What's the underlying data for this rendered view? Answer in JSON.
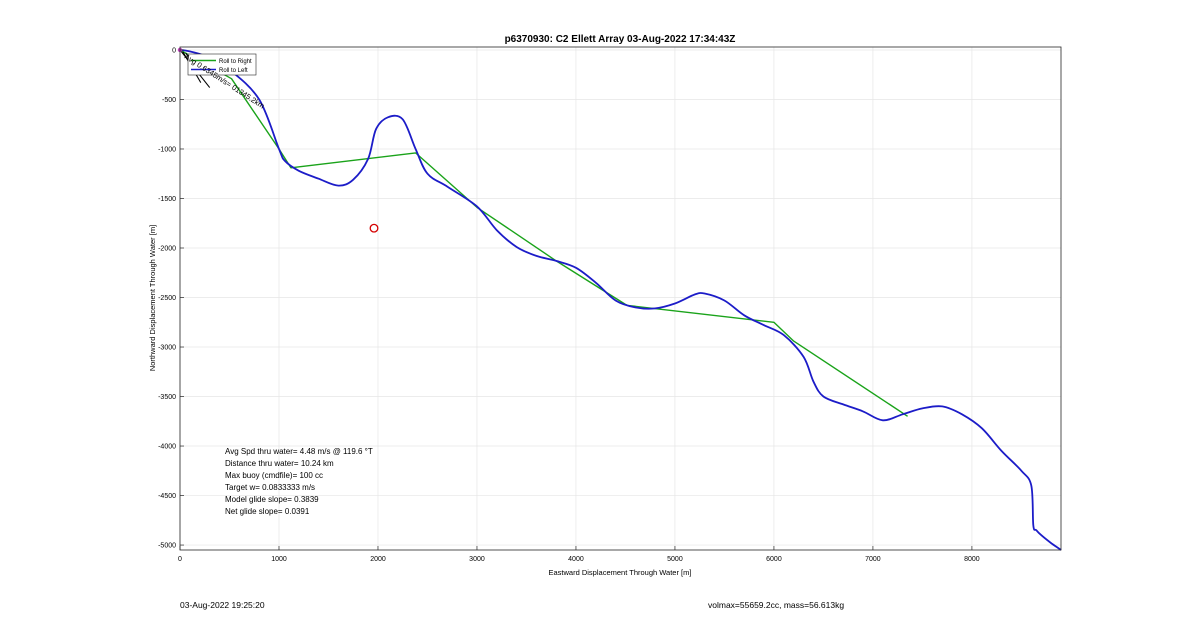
{
  "chart_data": {
    "type": "line",
    "title": "p6370930: C2 Ellett Array 03-Aug-2022 17:34:43Z",
    "xlabel": "Eastward Displacement Through Water [m]",
    "ylabel": "Northward Displacement Through Water [m]",
    "xlim": [
      0,
      8900
    ],
    "ylim": [
      -5050,
      30
    ],
    "xticks": [
      0,
      1000,
      2000,
      3000,
      4000,
      5000,
      6000,
      7000,
      8000
    ],
    "yticks": [
      0,
      -500,
      -1000,
      -1500,
      -2000,
      -2500,
      -3000,
      -3500,
      -4000,
      -4500,
      -5000
    ],
    "grid": true,
    "legend": {
      "placement": "top-left",
      "entries": [
        "Roll to Right",
        "Roll to Left"
      ]
    },
    "series": [
      {
        "name": "Roll to Right",
        "color": "#1aa31a",
        "x": [
          0,
          520,
          1000,
          1120,
          2380,
          3000,
          3800,
          4500,
          4520,
          6000,
          6200,
          7350
        ],
        "y": [
          0,
          -290,
          -1000,
          -1190,
          -1040,
          -1590,
          -2130,
          -2570,
          -2580,
          -2750,
          -2940,
          -3700
        ]
      },
      {
        "name": "Roll to Left",
        "color": "#1c1cc8",
        "x": [
          0,
          80,
          250,
          500,
          800,
          1000,
          1060,
          1200,
          1400,
          1600,
          1750,
          1900,
          1980,
          2100,
          2250,
          2380,
          2500,
          2700,
          3000,
          3200,
          3400,
          3600,
          3800,
          4000,
          4200,
          4400,
          4600,
          4800,
          5000,
          5200,
          5300,
          5500,
          5700,
          5900,
          6100,
          6300,
          6400,
          6500,
          6700,
          6900,
          7100,
          7300,
          7500,
          7700,
          7900,
          8100,
          8300,
          8500,
          8600,
          8620,
          8650,
          8700,
          8800,
          8900
        ],
        "y": [
          0,
          -10,
          -60,
          -200,
          -500,
          -1000,
          -1120,
          -1220,
          -1300,
          -1370,
          -1310,
          -1100,
          -800,
          -680,
          -700,
          -1000,
          -1250,
          -1380,
          -1580,
          -1820,
          -1990,
          -2080,
          -2130,
          -2200,
          -2350,
          -2530,
          -2600,
          -2610,
          -2560,
          -2470,
          -2460,
          -2530,
          -2680,
          -2780,
          -2880,
          -3100,
          -3350,
          -3500,
          -3580,
          -3650,
          -3740,
          -3680,
          -3620,
          -3600,
          -3680,
          -3820,
          -4050,
          -4250,
          -4400,
          -4800,
          -4850,
          -4900,
          -4980,
          -5050
        ]
      }
    ],
    "target_marker": {
      "x": 1960,
      "y": -1800,
      "color": "#d40000"
    },
    "annotations": {
      "track_label": "Avg 0.6345m/s= 01345.2km",
      "stats": [
        "Avg Spd thru water=  4.48 m/s @ 119.6 °T",
        "Distance thru water= 10.24 km",
        "Max buoy (cmdfile)= 100 cc",
        "Target w= 0.0833333 m/s",
        "Model glide slope= 0.3839",
        "Net glide slope= 0.0391"
      ]
    }
  },
  "footer": {
    "date": "03-Aug-2022 19:25:20",
    "volmax": "volmax=55659.2cc, mass=56.613kg"
  }
}
